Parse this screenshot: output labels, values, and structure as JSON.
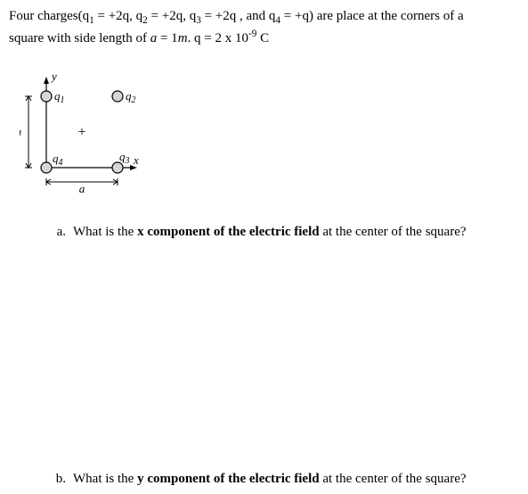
{
  "problem": {
    "line1_pre": "Four charges(q",
    "sub1": "1",
    "eq1": " = +2q, q",
    "sub2": "2",
    "eq2": " = +2q, q",
    "sub3": "3",
    "eq3": " = +2q , and q",
    "sub4": "4",
    "eq4": " = +q) are place at the corners of a",
    "line2_pre": "square with side length of  ",
    "a_var": "a",
    "line2_mid": " = 1",
    "m_unit": "m",
    "line2_q": ". q = 2 x 10",
    "exp": "-9",
    "unit": " C"
  },
  "diagram": {
    "y_label": "y",
    "x_label": "x",
    "a_left": "a",
    "a_bottom": "a",
    "q1": "q",
    "q1s": "1",
    "q2": "q",
    "q2s": "2",
    "q3": "q",
    "q3s": "3",
    "q4": "q",
    "q4s": "4",
    "plus": "+",
    "side": 80,
    "charge_radius": 6,
    "charge_fill": "#d6d6d6",
    "charge_stroke": "#000",
    "line_color": "#000"
  },
  "questions": {
    "a": {
      "marker": "a.",
      "pre": "What is the ",
      "bold": "x component of the electric field",
      "post": " at the center of the square?"
    },
    "b": {
      "marker": "b.",
      "pre": "What is the ",
      "bold": "y component of the electric field",
      "post": " at the center of the square?"
    }
  }
}
